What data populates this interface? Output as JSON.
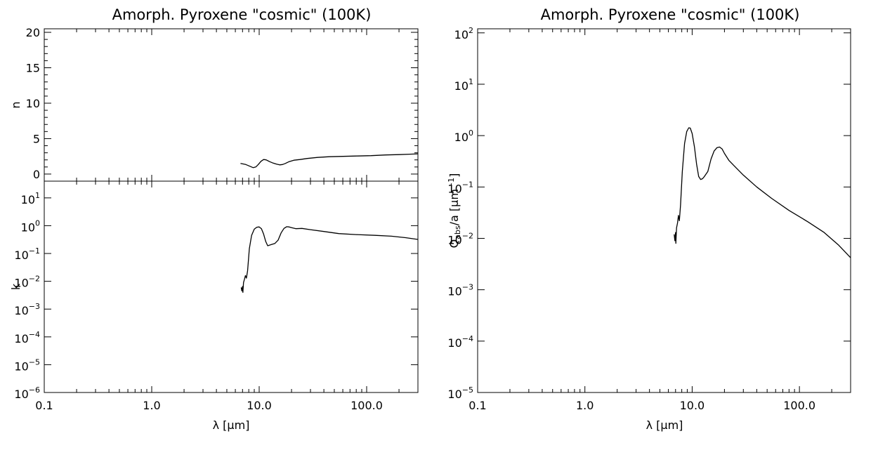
{
  "chart_data": [
    {
      "type": "line",
      "id": "n",
      "title": "Amorph. Pyroxene \"cosmic\" (100K)",
      "xlabel": "",
      "ylabel": "n",
      "xscale": "log",
      "yscale": "linear",
      "xlim": [
        0.1,
        300
      ],
      "ylim": [
        -1,
        20.5
      ],
      "xticks": [
        {
          "v": 0.1,
          "label": "0.1"
        },
        {
          "v": 1,
          "label": "1.0"
        },
        {
          "v": 10,
          "label": "10.0"
        },
        {
          "v": 100,
          "label": "100.0"
        }
      ],
      "yticks": [
        {
          "v": 0,
          "label": "0"
        },
        {
          "v": 5,
          "label": "5"
        },
        {
          "v": 10,
          "label": "10"
        },
        {
          "v": 15,
          "label": "15"
        },
        {
          "v": 20,
          "label": "20"
        }
      ],
      "show_xtick_labels": false,
      "series": [
        {
          "x": [
            6.7,
            7.5,
            8.2,
            8.8,
            9.3,
            9.8,
            10.4,
            11.0,
            11.6,
            12.5,
            13.5,
            14.5,
            15.5,
            16.5,
            17.5,
            19,
            21,
            24,
            28,
            35,
            45,
            60,
            80,
            110,
            150,
            200,
            250,
            300
          ],
          "y": [
            1.5,
            1.35,
            1.1,
            0.9,
            1.0,
            1.35,
            1.8,
            2.05,
            2.0,
            1.75,
            1.55,
            1.4,
            1.3,
            1.35,
            1.5,
            1.75,
            1.95,
            2.05,
            2.2,
            2.35,
            2.45,
            2.5,
            2.55,
            2.6,
            2.7,
            2.75,
            2.8,
            2.85
          ]
        }
      ]
    },
    {
      "type": "line",
      "id": "k",
      "title": "",
      "xlabel": "λ [μm]",
      "ylabel": "k",
      "xscale": "log",
      "yscale": "log",
      "xlim": [
        0.1,
        300
      ],
      "ylim": [
        1e-06,
        40
      ],
      "xticks": [
        {
          "v": 0.1,
          "label": "0.1"
        },
        {
          "v": 1,
          "label": "1.0"
        },
        {
          "v": 10,
          "label": "10.0"
        },
        {
          "v": 100,
          "label": "100.0"
        }
      ],
      "yticks": [
        {
          "v": 1e-06,
          "m": "10",
          "e": "−6"
        },
        {
          "v": 1e-05,
          "m": "10",
          "e": "−5"
        },
        {
          "v": 0.0001,
          "m": "10",
          "e": "−4"
        },
        {
          "v": 0.001,
          "m": "10",
          "e": "−3"
        },
        {
          "v": 0.01,
          "m": "10",
          "e": "−2"
        },
        {
          "v": 0.1,
          "m": "10",
          "e": "−1"
        },
        {
          "v": 1,
          "m": "10",
          "e": "0"
        },
        {
          "v": 10,
          "m": "10",
          "e": "1"
        }
      ],
      "show_xtick_labels": true,
      "series": [
        {
          "x": [
            6.8,
            6.9,
            7.0,
            7.05,
            7.15,
            7.3,
            7.45,
            7.6,
            7.8,
            8.1,
            8.5,
            9.0,
            9.5,
            10.0,
            10.5,
            11.0,
            11.5,
            12.0,
            12.5,
            13.0,
            14.0,
            15.0,
            16.0,
            17.0,
            18.0,
            19.0,
            20.0,
            22.0,
            25.0,
            30.0,
            40.0,
            55.0,
            80.0,
            120.0,
            170.0,
            230.0,
            300.0
          ],
          "y": [
            0.006,
            0.0045,
            0.0065,
            0.004,
            0.009,
            0.012,
            0.016,
            0.013,
            0.024,
            0.15,
            0.45,
            0.75,
            0.88,
            0.9,
            0.78,
            0.5,
            0.27,
            0.19,
            0.2,
            0.21,
            0.23,
            0.3,
            0.55,
            0.8,
            0.92,
            0.9,
            0.85,
            0.78,
            0.8,
            0.72,
            0.62,
            0.52,
            0.48,
            0.45,
            0.42,
            0.37,
            0.32
          ]
        }
      ]
    },
    {
      "type": "line",
      "id": "qabs",
      "title": "Amorph. Pyroxene \"cosmic\" (100K)",
      "xlabel": "λ [μm]",
      "ylabel": "Qabs/a [μm−1]",
      "xscale": "log",
      "yscale": "log",
      "xlim": [
        0.1,
        300
      ],
      "ylim": [
        1e-05,
        120
      ],
      "xticks": [
        {
          "v": 0.1,
          "label": "0.1"
        },
        {
          "v": 1,
          "label": "1.0"
        },
        {
          "v": 10,
          "label": "10.0"
        },
        {
          "v": 100,
          "label": "100.0"
        }
      ],
      "yticks": [
        {
          "v": 1e-05,
          "m": "10",
          "e": "−5"
        },
        {
          "v": 0.0001,
          "m": "10",
          "e": "−4"
        },
        {
          "v": 0.001,
          "m": "10",
          "e": "−3"
        },
        {
          "v": 0.01,
          "m": "10",
          "e": "−2"
        },
        {
          "v": 0.1,
          "m": "10",
          "e": "−1"
        },
        {
          "v": 1,
          "m": "10",
          "e": "0"
        },
        {
          "v": 10,
          "m": "10",
          "e": "1"
        },
        {
          "v": 100,
          "m": "10",
          "e": "2"
        }
      ],
      "show_xtick_labels": true,
      "series": [
        {
          "x": [
            6.8,
            6.9,
            7.0,
            7.05,
            7.15,
            7.3,
            7.45,
            7.6,
            7.8,
            8.1,
            8.5,
            8.9,
            9.3,
            9.6,
            10.0,
            10.5,
            11.0,
            11.5,
            12.0,
            12.5,
            13.0,
            14.0,
            15.0,
            16.0,
            17.0,
            18.0,
            19.0,
            20.0,
            22.0,
            25.0,
            30.0,
            40.0,
            55.0,
            80.0,
            120.0,
            170.0,
            230.0,
            300.0
          ],
          "y": [
            0.012,
            0.009,
            0.013,
            0.008,
            0.016,
            0.02,
            0.028,
            0.022,
            0.045,
            0.2,
            0.7,
            1.2,
            1.42,
            1.4,
            1.1,
            0.6,
            0.28,
            0.16,
            0.14,
            0.145,
            0.16,
            0.2,
            0.35,
            0.5,
            0.58,
            0.6,
            0.55,
            0.45,
            0.33,
            0.25,
            0.17,
            0.1,
            0.06,
            0.035,
            0.021,
            0.013,
            0.0075,
            0.0042
          ]
        }
      ]
    }
  ]
}
